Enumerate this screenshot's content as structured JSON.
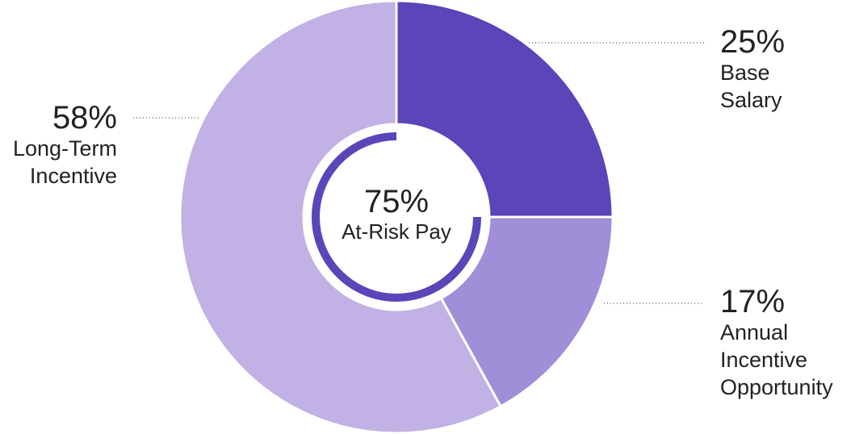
{
  "chart_data": {
    "type": "pie",
    "donut": true,
    "categories": [
      "Base Salary",
      "Annual Incentive Opportunity",
      "Long-Term Incentive"
    ],
    "values": [
      25,
      17,
      58
    ],
    "value_labels": [
      "25%",
      "17%",
      "58%"
    ],
    "colors": [
      "#5b45b9",
      "#a18ed8",
      "#c1b1e4"
    ],
    "center": {
      "value": 75,
      "value_label": "75%",
      "label": "At-Risk Pay",
      "color": "#5b45b9"
    }
  }
}
